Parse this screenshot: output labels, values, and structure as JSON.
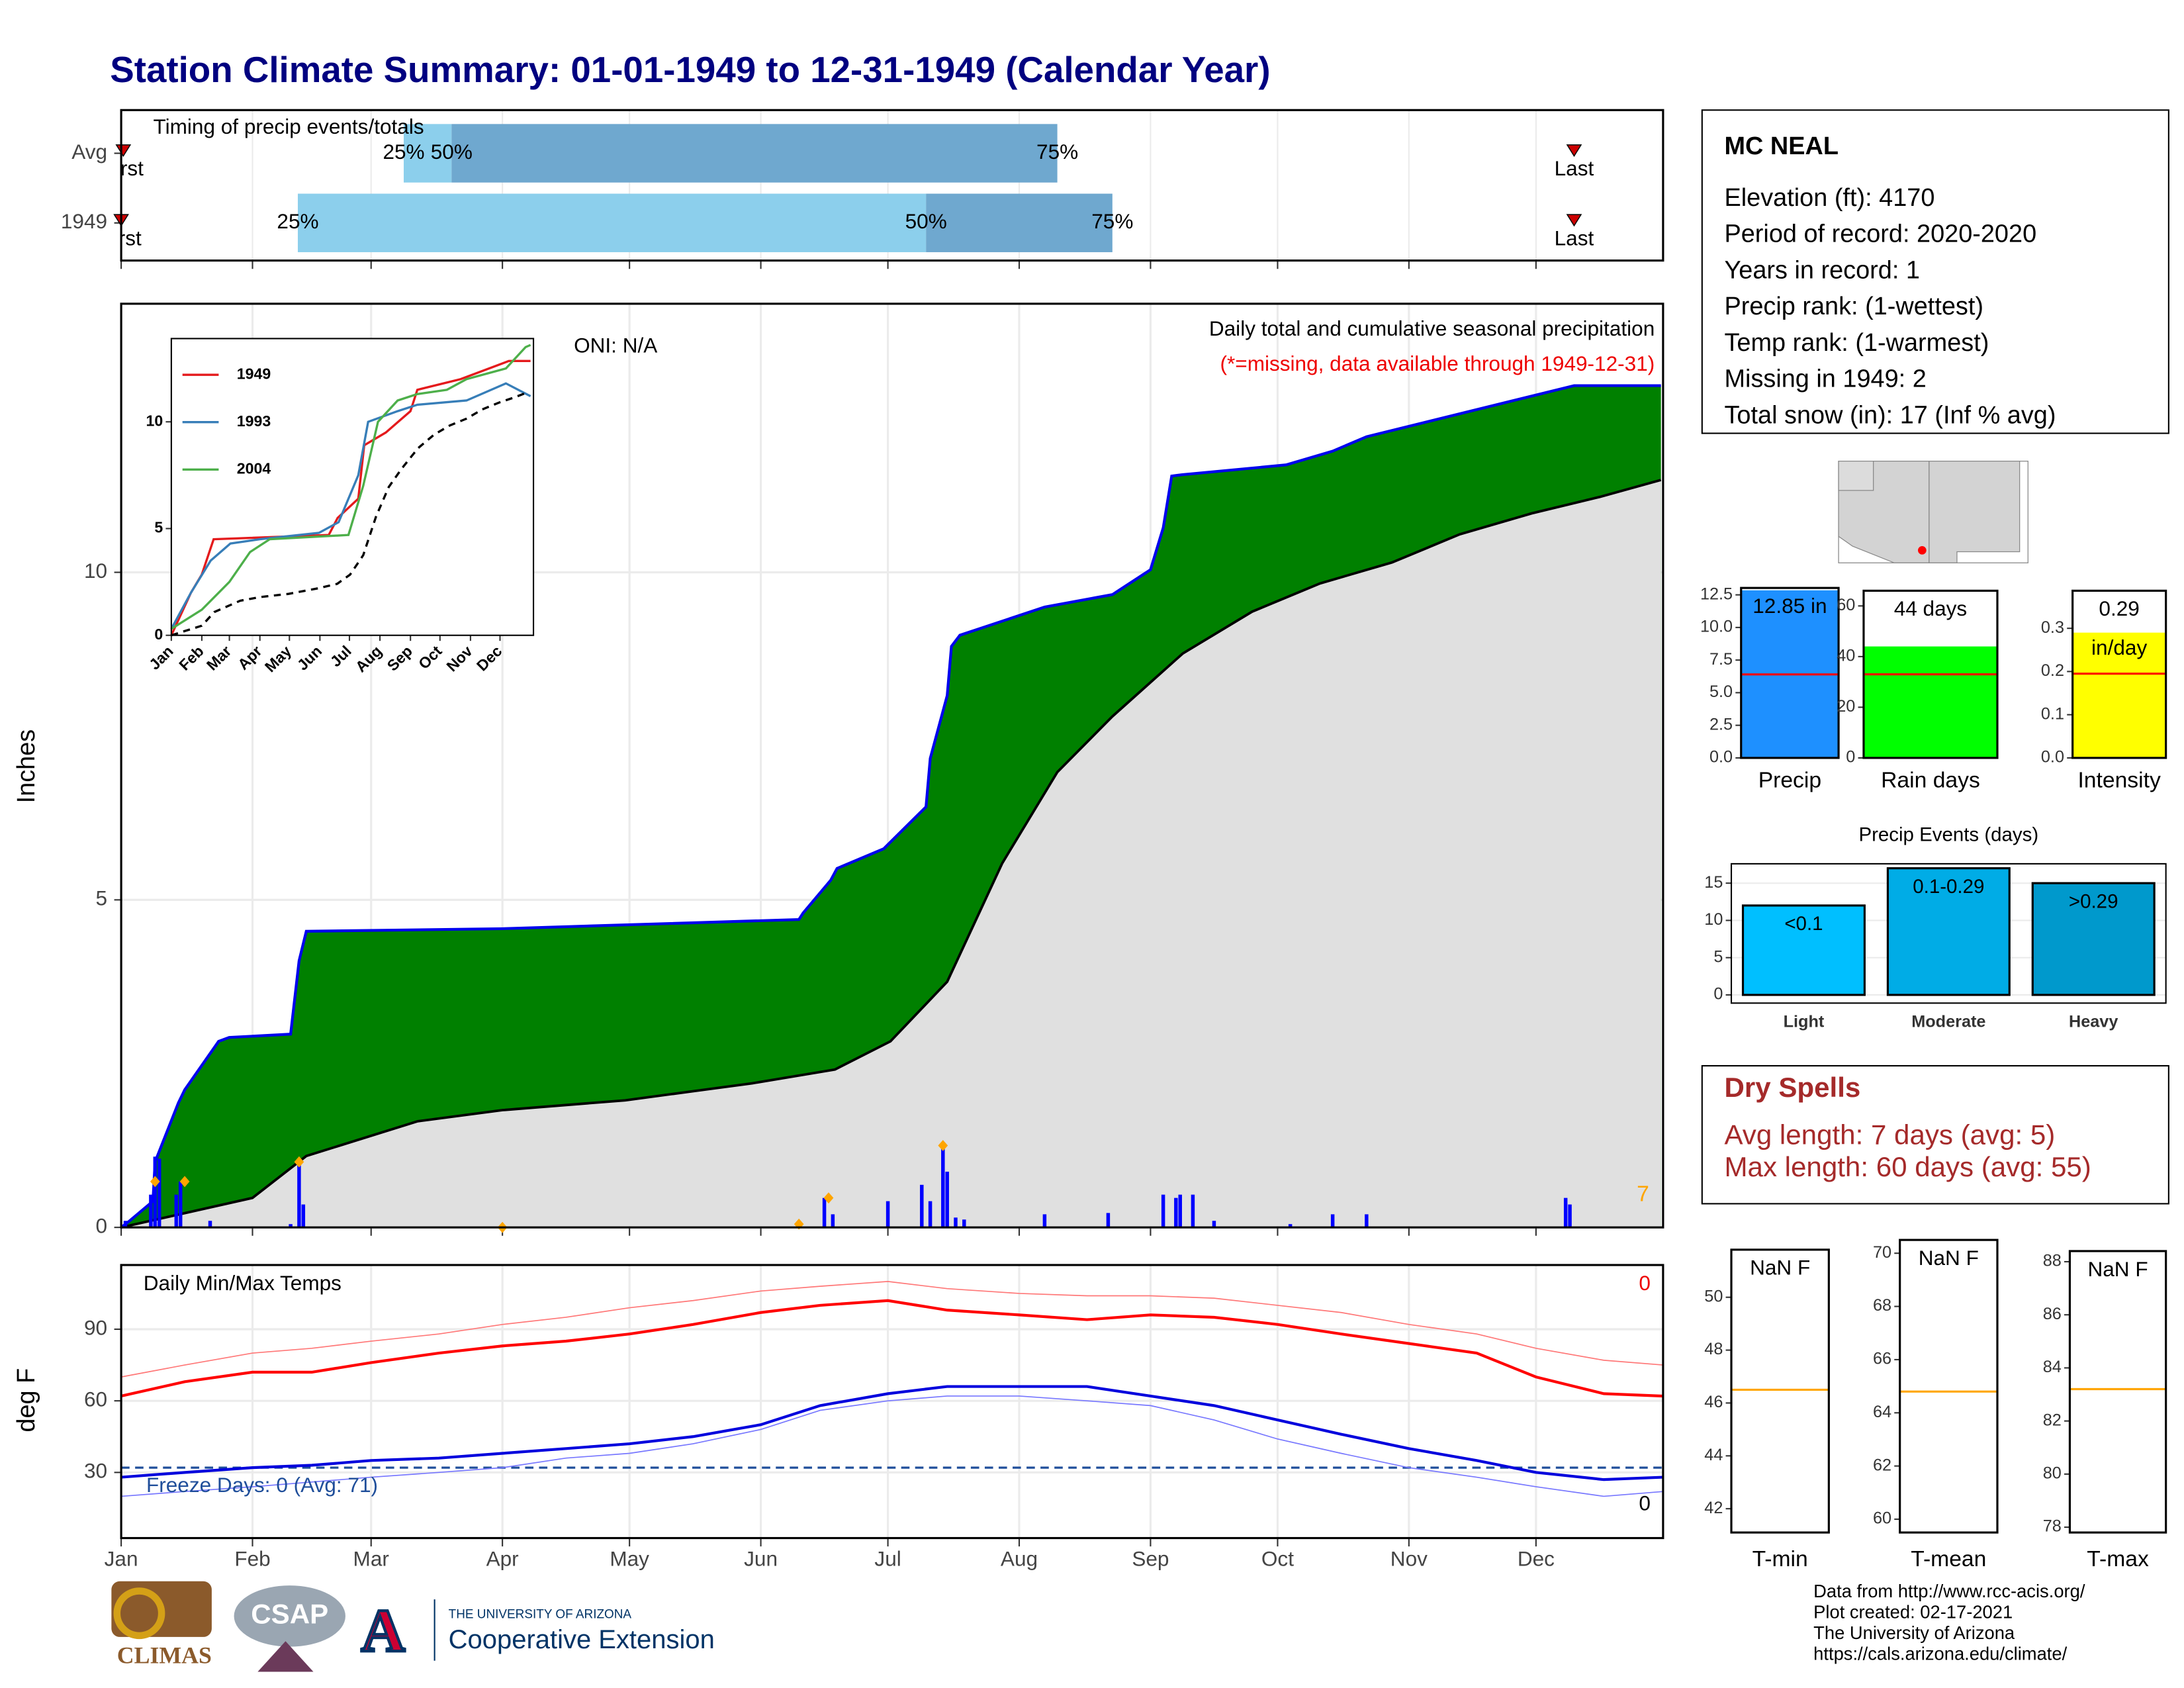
{
  "title": "Station Climate Summary: 01-01-1949 to 12-31-1949 (Calendar Year)",
  "station": {
    "name": "MC NEAL",
    "lines": [
      "Elevation (ft): 4170",
      "Period of record: 2020-2020",
      "Years in record: 1",
      "Precip rank:  (1-wettest)",
      "Temp rank:  (1-warmest)",
      "Missing in 1949: 2",
      "Total snow (in): 17 (Inf % avg)"
    ]
  },
  "dry_spells": {
    "title": "Dry Spells",
    "lines": [
      "Avg length: 7 days (avg: 5)",
      "Max length: 60 days (avg: 55)"
    ]
  },
  "footer": [
    "Data from http://www.rcc-acis.org/",
    "Plot created: 02-17-2021",
    "The University of Arizona",
    "https://cals.arizona.edu/climate/"
  ],
  "logos": {
    "climas": "CLIMAS",
    "csap": "CSAP",
    "ua": "THE UNIVERSITY OF ARIZONA",
    "extension": "Cooperative Extension"
  },
  "chart_data": [
    {
      "type": "timing",
      "title": "Timing of precip events/totals",
      "xlim": [
        0,
        364
      ],
      "xticks": [
        0,
        31,
        59,
        90,
        120,
        151,
        181,
        212,
        243,
        273,
        304,
        334
      ],
      "categories": [
        "Avg",
        "1949"
      ],
      "series": [
        {
          "name": "25%",
          "values": [
            66.7,
            41.7
          ]
        },
        {
          "name": "50%",
          "values": [
            78,
            190
          ]
        },
        {
          "name": "75%",
          "values": [
            221,
            234
          ]
        }
      ],
      "colors": [
        "#8ccfec",
        "#6fa8cf"
      ],
      "first": {
        "name": "First",
        "values": [
          0.5,
          0
        ]
      },
      "last": {
        "name": "Last",
        "values": [
          343,
          343
        ]
      },
      "marker_color": "#cc0000"
    },
    {
      "type": "area",
      "title": "Daily total and cumulative seasonal precipitation",
      "subtitle": "(*=missing, data available through 1949-12-31)",
      "annotation": "ONI: N/A",
      "corner_label": "7",
      "ylabel": "Inches",
      "xlim": [
        0,
        364
      ],
      "ylim": [
        0,
        14.1
      ],
      "yticks": [
        0,
        5,
        10
      ],
      "xticks": [
        0,
        31,
        59,
        90,
        120,
        151,
        181,
        212,
        243,
        273,
        304,
        334
      ],
      "grid": true,
      "cumulative": {
        "color": "#008000",
        "line_color": "#0000ee",
        "x": [
          0,
          2,
          7.5,
          8,
          13.5,
          15,
          23,
          25.5,
          40,
          42,
          43.7,
          90,
          160,
          161,
          167.5,
          169,
          180,
          190,
          191,
          195,
          196,
          198,
          218,
          234,
          243,
          246,
          248,
          250.5,
          275,
          286,
          294,
          343,
          363.5
        ],
        "values": [
          0,
          0.1,
          0.4,
          1.0,
          1.9,
          2.1,
          2.84,
          2.9,
          2.95,
          4.07,
          4.52,
          4.56,
          4.7,
          4.8,
          5.3,
          5.48,
          5.78,
          6.42,
          7.16,
          8.12,
          8.87,
          9.04,
          9.47,
          9.66,
          10.04,
          10.68,
          11.47,
          11.49,
          11.64,
          11.85,
          12.07,
          12.85,
          12.85
        ]
      },
      "average": {
        "color": "#e0e0e0",
        "line_color": "#000000",
        "x": [
          0,
          31,
          43.7,
          70,
          90,
          119,
          149,
          168.5,
          181.6,
          195,
          208,
          221,
          234,
          250.6,
          267,
          283,
          300,
          316,
          333,
          349,
          363.5
        ],
        "values": [
          0,
          0.45,
          1.09,
          1.62,
          1.79,
          1.94,
          2.2,
          2.41,
          2.84,
          3.75,
          5.56,
          6.95,
          7.8,
          8.76,
          9.4,
          9.83,
          10.15,
          10.58,
          10.9,
          11.15,
          11.41
        ]
      },
      "daily": {
        "color": "#0000ff",
        "x": [
          1,
          7,
          8,
          9,
          13,
          14,
          21,
          40,
          42,
          43,
          160,
          166,
          168,
          181,
          189,
          191,
          194,
          195,
          197,
          199,
          218,
          233,
          246,
          249,
          250,
          253,
          258,
          276,
          286,
          294,
          341,
          342
        ],
        "values": [
          0.1,
          0.5,
          1.08,
          1.05,
          0.5,
          0.7,
          0.1,
          0.05,
          1.0,
          0.35,
          0.1,
          0.45,
          0.2,
          0.4,
          0.65,
          0.4,
          1.25,
          0.85,
          0.15,
          0.12,
          0.2,
          0.22,
          0.5,
          0.45,
          0.5,
          0.5,
          0.1,
          0.05,
          0.2,
          0.2,
          0.45,
          0.35
        ]
      },
      "markers": {
        "color": "#ffa500",
        "x": [
          8,
          15,
          42,
          90,
          160,
          167,
          194
        ],
        "values": [
          0.7,
          0.7,
          1.0,
          0,
          0.05,
          0.45,
          1.25
        ]
      }
    },
    {
      "type": "line",
      "xlim": [
        0,
        368
      ],
      "ylim": [
        0,
        13.9
      ],
      "yticks": [
        0,
        5,
        10
      ],
      "xticks": [
        {
          "value": 0,
          "label": "Jan"
        },
        {
          "value": 31,
          "label": "Feb"
        },
        {
          "value": 59,
          "label": "Mar"
        },
        {
          "value": 90,
          "label": "Apr"
        },
        {
          "value": 120,
          "label": "May"
        },
        {
          "value": 151,
          "label": "Jun"
        },
        {
          "value": 181,
          "label": "Jul"
        },
        {
          "value": 212,
          "label": "Aug"
        },
        {
          "value": 243,
          "label": "Sep"
        },
        {
          "value": 273,
          "label": "Oct"
        },
        {
          "value": 304,
          "label": "Nov"
        },
        {
          "value": 334,
          "label": "Dec"
        }
      ],
      "series": [
        {
          "name": "1949",
          "color": "#e41a1c",
          "x": [
            0,
            20,
            31,
            43,
            160,
            169,
            190,
            196,
            218,
            243,
            250,
            294,
            343,
            365
          ],
          "values": [
            0,
            2,
            2.85,
            4.5,
            4.7,
            5.5,
            6.4,
            8.9,
            9.5,
            10.5,
            11.5,
            12,
            12.85,
            12.85
          ]
        },
        {
          "name": "1993",
          "color": "#377eb8",
          "x": [
            0,
            20,
            40,
            60,
            90,
            150,
            170,
            190,
            200,
            230,
            250,
            300,
            340,
            365
          ],
          "values": [
            0.3,
            2,
            3.5,
            4.3,
            4.5,
            4.8,
            5.3,
            7.5,
            10,
            10.5,
            10.8,
            11,
            11.8,
            11.2
          ]
        },
        {
          "name": "2004",
          "color": "#4daf4a",
          "x": [
            0,
            31,
            59,
            80,
            100,
            180,
            195,
            210,
            230,
            250,
            280,
            300,
            340,
            360,
            365
          ],
          "values": [
            0.3,
            1.2,
            2.5,
            3.9,
            4.5,
            4.7,
            7,
            10,
            11,
            11.3,
            11.5,
            12,
            12.5,
            13.5,
            13.6
          ]
        },
        {
          "color": "#000000",
          "dashed": true,
          "x": [
            0,
            31,
            43.7,
            70,
            90,
            119,
            149,
            168.5,
            181.6,
            195,
            208,
            221,
            234,
            250.6,
            267,
            283,
            300,
            316,
            333,
            349,
            363.5
          ],
          "values": [
            0,
            0.45,
            1.09,
            1.62,
            1.79,
            1.94,
            2.2,
            2.41,
            2.84,
            3.75,
            5.56,
            6.95,
            7.8,
            8.76,
            9.4,
            9.83,
            10.15,
            10.58,
            10.9,
            11.15,
            11.41
          ]
        }
      ]
    },
    {
      "type": "line",
      "title": "Daily Min/Max Temps",
      "ylabel": "deg F",
      "xlim": [
        0,
        364
      ],
      "ylim": [
        2.5,
        116.9
      ],
      "yticks": [
        30,
        60,
        90
      ],
      "grid": true,
      "xticks": [
        {
          "value": 0,
          "label": "Jan"
        },
        {
          "value": 31,
          "label": "Feb"
        },
        {
          "value": 59,
          "label": "Mar"
        },
        {
          "value": 90,
          "label": "Apr"
        },
        {
          "value": 120,
          "label": "May"
        },
        {
          "value": 151,
          "label": "Jun"
        },
        {
          "value": 181,
          "label": "Jul"
        },
        {
          "value": 212,
          "label": "Aug"
        },
        {
          "value": 243,
          "label": "Sep"
        },
        {
          "value": 273,
          "label": "Oct"
        },
        {
          "value": 304,
          "label": "Nov"
        },
        {
          "value": 334,
          "label": "Dec"
        }
      ],
      "freeze": {
        "value": 32,
        "label": "Freeze Days: 0 (Avg: 71)",
        "color": "#1f4e9a"
      },
      "max_missing": "0",
      "min_missing": "0",
      "x": [
        0,
        15,
        31,
        45,
        59,
        75,
        90,
        105,
        120,
        135,
        151,
        165,
        181,
        195,
        212,
        228,
        243,
        258,
        273,
        288,
        304,
        320,
        334,
        350,
        364
      ],
      "series": [
        {
          "color": "#ff0000",
          "values": [
            62,
            68,
            72,
            72,
            76,
            80,
            83,
            85,
            88,
            92,
            97,
            100,
            102,
            98,
            96,
            94,
            96,
            95,
            92,
            88,
            84,
            80,
            70,
            63,
            62
          ]
        },
        {
          "color": "#ff7777",
          "values": [
            70,
            75,
            80,
            82,
            85,
            88,
            92,
            95,
            99,
            102,
            106,
            108,
            110,
            107,
            105,
            104,
            104,
            103,
            100,
            97,
            92,
            88,
            82,
            77,
            75
          ]
        },
        {
          "color": "#0000dd",
          "values": [
            28,
            30,
            32,
            33,
            35,
            36,
            38,
            40,
            42,
            45,
            50,
            58,
            63,
            66,
            66,
            66,
            62,
            58,
            52,
            46,
            40,
            35,
            30,
            27,
            28
          ]
        },
        {
          "color": "#7777ff",
          "values": [
            20,
            22,
            24,
            26,
            28,
            30,
            32,
            36,
            38,
            42,
            48,
            56,
            60,
            62,
            62,
            60,
            58,
            52,
            44,
            38,
            32,
            28,
            24,
            20,
            22
          ]
        }
      ]
    },
    {
      "type": "gauge",
      "label": "Precip",
      "value": 12.85,
      "value_label": "12.85 in",
      "average": 6.4,
      "color": "#1e90ff",
      "average_color": "#ff0000",
      "ylim": [
        0,
        13.03
      ],
      "yticks": [
        {
          "value": 0,
          "label": "0.0"
        },
        2.5,
        {
          "value": 5,
          "label": "5.0"
        },
        7.5,
        {
          "value": 10,
          "label": "10.0"
        },
        12.5
      ]
    },
    {
      "type": "gauge",
      "label": "Rain days",
      "value": 44,
      "value_label": "44 days",
      "average": 33,
      "color": "#00ff00",
      "average_color": "#ff0000",
      "ylim": [
        0,
        66
      ],
      "yticks": [
        0,
        20,
        40,
        60
      ]
    },
    {
      "type": "gauge",
      "label": "Intensity",
      "value": 0.29,
      "value_label": "0.29",
      "unit": "in/day",
      "average": 0.195,
      "color": "#ffff00",
      "average_color": "#ff0000",
      "ylim": [
        0,
        0.387
      ],
      "yticks": [
        {
          "value": 0,
          "label": "0.0"
        },
        0.1,
        0.2,
        0.3
      ]
    },
    {
      "type": "bar",
      "title": "Precip Events (days)",
      "categories": [
        "Light",
        "Moderate",
        "Heavy"
      ],
      "values": [
        12,
        17,
        15
      ],
      "bin_labels": [
        "<0.1",
        "0.1-0.29",
        ">0.29"
      ],
      "colors": [
        "#00bfff",
        "#00ace6",
        "#0099cc"
      ],
      "ylim": [
        -1.1,
        17.6
      ],
      "yticks": [
        0,
        5,
        10,
        15
      ]
    },
    {
      "type": "gauge",
      "label": "T-min",
      "value": null,
      "value_label": "NaN F",
      "average": 46.5,
      "average_color": "#ffa500",
      "ylim": [
        41.1,
        51.8
      ],
      "yticks": [
        42,
        44,
        46,
        48,
        50
      ]
    },
    {
      "type": "gauge",
      "label": "T-mean",
      "value": null,
      "value_label": "NaN F",
      "average": 64.8,
      "average_color": "#ffa500",
      "ylim": [
        59.5,
        70.5
      ],
      "yticks": [
        60,
        62,
        64,
        66,
        68,
        70
      ]
    },
    {
      "type": "gauge",
      "label": "T-max",
      "value": null,
      "value_label": "NaN F",
      "average": 83.2,
      "average_color": "#ffa500",
      "ylim": [
        77.8,
        88.4
      ],
      "yticks": [
        78,
        80,
        82,
        84,
        86,
        88
      ]
    }
  ]
}
